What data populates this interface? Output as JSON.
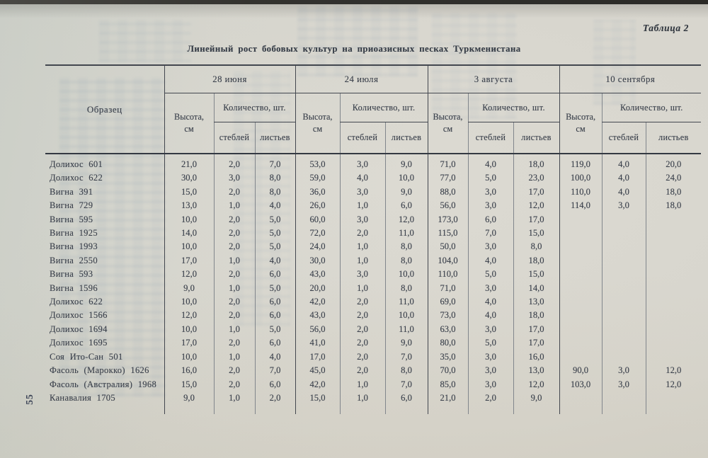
{
  "page": {
    "number": "55",
    "table_label": "Таблица 2",
    "title": "Линейный рост бобовых культур на приоазисных песках Туркменистана"
  },
  "table": {
    "sample_header": "Образец",
    "height_label": "Высота,",
    "height_unit": "см",
    "qty_label": "Количество, шт.",
    "stems_label": "стеблей",
    "leaves_label": "листьев",
    "groups": [
      {
        "date": "28 июня"
      },
      {
        "date": "24 июля"
      },
      {
        "date": "3 августа"
      },
      {
        "date": "10 сентября"
      }
    ],
    "rows": [
      {
        "name": "Долихос 601",
        "values": [
          "21,0",
          "2,0",
          "7,0",
          "53,0",
          "3,0",
          "9,0",
          "71,0",
          "4,0",
          "18,0",
          "119,0",
          "4,0",
          "20,0"
        ]
      },
      {
        "name": "Долихос 622",
        "values": [
          "30,0",
          "3,0",
          "8,0",
          "59,0",
          "4,0",
          "10,0",
          "77,0",
          "5,0",
          "23,0",
          "100,0",
          "4,0",
          "24,0"
        ]
      },
      {
        "name": "Вигна 391",
        "values": [
          "15,0",
          "2,0",
          "8,0",
          "36,0",
          "3,0",
          "9,0",
          "88,0",
          "3,0",
          "17,0",
          "110,0",
          "4,0",
          "18,0"
        ]
      },
      {
        "name": "Вигна 729",
        "values": [
          "13,0",
          "1,0",
          "4,0",
          "26,0",
          "1,0",
          "6,0",
          "56,0",
          "3,0",
          "12,0",
          "114,0",
          "3,0",
          "18,0"
        ]
      },
      {
        "name": "Вигна 595",
        "values": [
          "10,0",
          "2,0",
          "5,0",
          "60,0",
          "3,0",
          "12,0",
          "173,0",
          "6,0",
          "17,0",
          "",
          "",
          ""
        ]
      },
      {
        "name": "Вигна 1925",
        "values": [
          "14,0",
          "2,0",
          "5,0",
          "72,0",
          "2,0",
          "11,0",
          "115,0",
          "7,0",
          "15,0",
          "",
          "",
          ""
        ]
      },
      {
        "name": "Вигна 1993",
        "values": [
          "10,0",
          "2,0",
          "5,0",
          "24,0",
          "1,0",
          "8,0",
          "50,0",
          "3,0",
          "8,0",
          "",
          "",
          ""
        ]
      },
      {
        "name": "Вигна 2550",
        "values": [
          "17,0",
          "1,0",
          "4,0",
          "30,0",
          "1,0",
          "8,0",
          "104,0",
          "4,0",
          "18,0",
          "",
          "",
          ""
        ]
      },
      {
        "name": "Вигна 593",
        "values": [
          "12,0",
          "2,0",
          "6,0",
          "43,0",
          "3,0",
          "10,0",
          "110,0",
          "5,0",
          "15,0",
          "",
          "",
          ""
        ]
      },
      {
        "name": "Вигна 1596",
        "values": [
          "9,0",
          "1,0",
          "5,0",
          "20,0",
          "1,0",
          "8,0",
          "71,0",
          "3,0",
          "14,0",
          "",
          "",
          ""
        ]
      },
      {
        "name": "Долихос 622",
        "values": [
          "10,0",
          "2,0",
          "6,0",
          "42,0",
          "2,0",
          "11,0",
          "69,0",
          "4,0",
          "13,0",
          "",
          "",
          ""
        ]
      },
      {
        "name": "Долихос 1566",
        "values": [
          "12,0",
          "2,0",
          "6,0",
          "43,0",
          "2,0",
          "10,0",
          "73,0",
          "4,0",
          "18,0",
          "",
          "",
          ""
        ]
      },
      {
        "name": "Долихос 1694",
        "values": [
          "10,0",
          "1,0",
          "5,0",
          "56,0",
          "2,0",
          "11,0",
          "63,0",
          "3,0",
          "17,0",
          "",
          "",
          ""
        ]
      },
      {
        "name": "Долихос 1695",
        "values": [
          "17,0",
          "2,0",
          "6,0",
          "41,0",
          "2,0",
          "9,0",
          "80,0",
          "5,0",
          "17,0",
          "",
          "",
          ""
        ]
      },
      {
        "name": "Соя Ито-Сан 501",
        "values": [
          "10,0",
          "1,0",
          "4,0",
          "17,0",
          "2,0",
          "7,0",
          "35,0",
          "3,0",
          "16,0",
          "",
          "",
          ""
        ]
      },
      {
        "name": "Фасоль (Марокко) 1626",
        "values": [
          "16,0",
          "2,0",
          "7,0",
          "45,0",
          "2,0",
          "8,0",
          "70,0",
          "3,0",
          "13,0",
          "90,0",
          "3,0",
          "12,0"
        ]
      },
      {
        "name": "Фасоль (Австралия) 1968",
        "values": [
          "15,0",
          "2,0",
          "6,0",
          "42,0",
          "1,0",
          "7,0",
          "85,0",
          "3,0",
          "12,0",
          "103,0",
          "3,0",
          "12,0"
        ]
      },
      {
        "name": "Канавалия 1705",
        "values": [
          "9,0",
          "1,0",
          "2,0",
          "15,0",
          "1,0",
          "6,0",
          "21,0",
          "2,0",
          "9,0",
          "",
          "",
          ""
        ]
      }
    ]
  }
}
